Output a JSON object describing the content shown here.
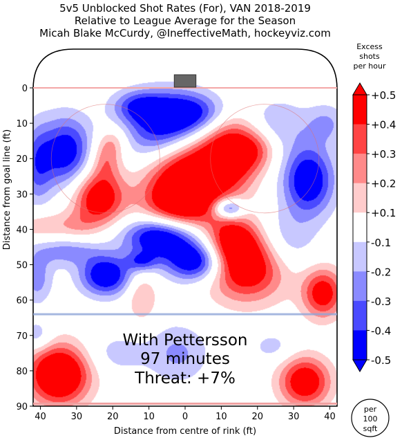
{
  "chart_data": {
    "type": "heatmap",
    "title_lines": [
      "5v5 Unblocked Shot Rates (For), VAN 2018-2019",
      "Relative to League Average for the Season",
      "Micah Blake McCurdy, @IneffectiveMath, hockeyviz.com"
    ],
    "xlabel": "Distance from centre of rink (ft)",
    "ylabel": "Distance from goal line (ft)",
    "xlim": [
      42,
      -42
    ],
    "ylim": [
      0,
      90
    ],
    "x_ticks": [
      40,
      30,
      20,
      10,
      0,
      10,
      20,
      30,
      40
    ],
    "x_tick_values": [
      40,
      30,
      20,
      10,
      0,
      -10,
      -20,
      -30,
      -40
    ],
    "y_ticks": [
      0,
      10,
      20,
      30,
      40,
      50,
      60,
      70,
      80,
      90
    ],
    "colorbar": {
      "title_lines": [
        "Excess",
        "shots",
        "per hour"
      ],
      "labels": [
        "+0.5",
        "+0.4",
        "+0.3",
        "+0.2",
        "+0.1",
        "-0.1",
        "-0.2",
        "-0.3",
        "-0.4",
        "-0.5"
      ],
      "levels": [
        0.5,
        0.4,
        0.3,
        0.2,
        0.1,
        -0.1,
        -0.2,
        -0.3,
        -0.4,
        -0.5
      ],
      "colors": [
        "#ff0000",
        "#ff4444",
        "#ff8a8a",
        "#ffcccc",
        "#ffffff",
        "#c8c8ff",
        "#8a8aff",
        "#4a4aff",
        "#0000ff"
      ]
    },
    "unit_badge": [
      "per",
      "100",
      "sqft"
    ],
    "annotation": {
      "player": "With Pettersson",
      "minutes": "97 minutes",
      "threat": "Threat: +7%"
    },
    "hotspots": [
      {
        "x": -0.8,
        "y": 23,
        "sx": 8,
        "sy": 8.5,
        "v": 0.7
      },
      {
        "x": 2,
        "y": 33,
        "sx": 7,
        "sy": 5,
        "v": 0.4
      },
      {
        "x": -13,
        "y": 18,
        "sx": 5.5,
        "sy": 7,
        "v": 0.5
      },
      {
        "x": -20,
        "y": 17,
        "sx": 4,
        "sy": 4,
        "v": 0.2
      },
      {
        "x": -17,
        "y": 50,
        "sx": 8,
        "sy": 7,
        "v": 0.6
      },
      {
        "x": -13,
        "y": 43,
        "sx": 5,
        "sy": 5,
        "v": 0.35
      },
      {
        "x": 24,
        "y": 31,
        "sx": 5,
        "sy": 5.5,
        "v": 0.55
      },
      {
        "x": 22,
        "y": 20,
        "sx": 3,
        "sy": 4,
        "v": 0.25
      },
      {
        "x": 40,
        "y": 39,
        "sx": 5,
        "sy": 3,
        "v": 0.2
      },
      {
        "x": 30,
        "y": 39,
        "sx": 4,
        "sy": 3,
        "v": 0.15
      },
      {
        "x": 12,
        "y": 59,
        "sx": 3,
        "sy": 5,
        "v": 0.22
      },
      {
        "x": -38,
        "y": 58,
        "sx": 4,
        "sy": 5,
        "v": 0.5
      },
      {
        "x": 35,
        "y": 81,
        "sx": 6,
        "sy": 6,
        "v": 0.7
      },
      {
        "x": -33,
        "y": 83,
        "sx": 5,
        "sy": 5,
        "v": 0.55
      },
      {
        "x": 5,
        "y": 12,
        "sx": 8,
        "sy": 7,
        "v": -0.6
      },
      {
        "x": -2,
        "y": 7,
        "sx": 7,
        "sy": 4,
        "v": -0.35
      },
      {
        "x": 13,
        "y": 5,
        "sx": 5,
        "sy": 3,
        "v": -0.3
      },
      {
        "x": 33,
        "y": 18,
        "sx": 5,
        "sy": 7,
        "v": -0.5
      },
      {
        "x": 20,
        "y": 15,
        "sx": 3,
        "sy": 3,
        "v": 0.18
      },
      {
        "x": -34,
        "y": 26,
        "sx": 5,
        "sy": 7,
        "v": -0.55
      },
      {
        "x": -39,
        "y": 10,
        "sx": 4,
        "sy": 4,
        "v": -0.2
      },
      {
        "x": 7,
        "y": 42,
        "sx": 7,
        "sy": 4,
        "v": -0.6
      },
      {
        "x": -3,
        "y": 49,
        "sx": 6,
        "sy": 4,
        "v": -0.6
      },
      {
        "x": -12,
        "y": 34,
        "sx": 3,
        "sy": 2,
        "v": -0.5
      },
      {
        "x": 22,
        "y": 53,
        "sx": 5,
        "sy": 4,
        "v": -0.55
      },
      {
        "x": 33,
        "y": 46,
        "sx": 7,
        "sy": 3,
        "v": -0.25
      },
      {
        "x": 41,
        "y": 22,
        "sx": 3,
        "sy": 8,
        "v": -0.3
      },
      {
        "x": -27,
        "y": 44,
        "sx": 6,
        "sy": 6,
        "v": -0.25
      },
      {
        "x": -25,
        "y": 10,
        "sx": 6,
        "sy": 5,
        "v": -0.2
      },
      {
        "x": 2,
        "y": 75,
        "sx": 6,
        "sy": 6,
        "v": -0.22
      },
      {
        "x": 19,
        "y": 75,
        "sx": 6,
        "sy": 4,
        "v": -0.15
      },
      {
        "x": -24,
        "y": 73,
        "sx": 4,
        "sy": 3,
        "v": -0.15
      },
      {
        "x": 41,
        "y": 54,
        "sx": 3,
        "sy": 5,
        "v": -0.25
      },
      {
        "x": 41,
        "y": 70,
        "sx": 3,
        "sy": 3,
        "v": -0.2
      },
      {
        "x": 12,
        "y": 49,
        "sx": 3,
        "sy": 2,
        "v": -0.3
      }
    ]
  }
}
